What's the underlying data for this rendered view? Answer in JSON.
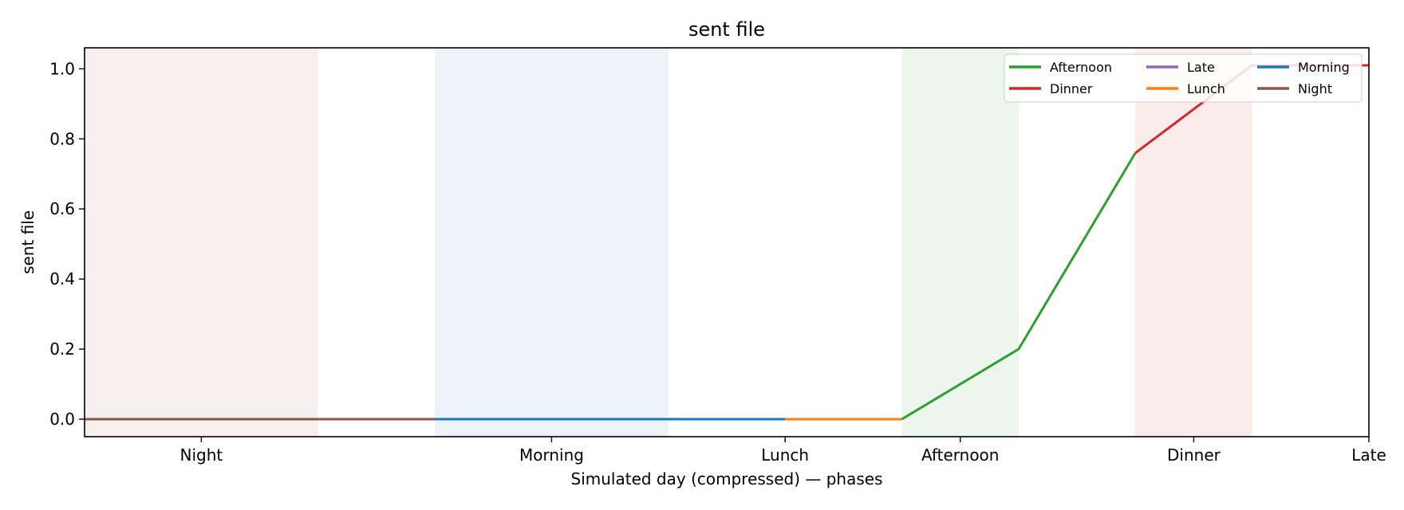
{
  "chart_data": {
    "type": "line",
    "title": "sent file",
    "xlabel": "Simulated day (compressed) — phases",
    "ylabel": "sent file",
    "xlim": [
      0,
      11
    ],
    "ylim": [
      -0.05,
      1.06
    ],
    "yticks": [
      0.0,
      0.2,
      0.4,
      0.6,
      0.8,
      1.0
    ],
    "ytick_labels": [
      "0.0",
      "0.2",
      "0.4",
      "0.6",
      "0.8",
      "1.0"
    ],
    "xticks": [
      {
        "value": 1.0,
        "label": "Night"
      },
      {
        "value": 4.0,
        "label": "Morning"
      },
      {
        "value": 6.0,
        "label": "Lunch"
      },
      {
        "value": 7.5,
        "label": "Afternoon"
      },
      {
        "value": 9.5,
        "label": "Dinner"
      },
      {
        "value": 11.0,
        "label": "Late"
      }
    ],
    "bands": [
      {
        "x0": 0,
        "x1": 2,
        "color": "#8c564b"
      },
      {
        "x0": 3,
        "x1": 5,
        "color": "#1f77b4"
      },
      {
        "x0": 7,
        "x1": 8,
        "color": "#2ca02c"
      },
      {
        "x0": 9,
        "x1": 10,
        "color": "#d62728"
      }
    ],
    "series": [
      {
        "name": "Night",
        "color": "#8c564b",
        "x": [
          0,
          1,
          2,
          3
        ],
        "y": [
          0,
          0,
          0,
          0
        ]
      },
      {
        "name": "Morning",
        "color": "#1f77b4",
        "x": [
          3,
          4,
          5,
          6
        ],
        "y": [
          0,
          0,
          0,
          0
        ]
      },
      {
        "name": "Lunch",
        "color": "#ff7f0e",
        "x": [
          6,
          7
        ],
        "y": [
          0,
          0
        ]
      },
      {
        "name": "Afternoon",
        "color": "#2ca02c",
        "x": [
          7,
          8,
          9
        ],
        "y": [
          0,
          0.2,
          0.76
        ]
      },
      {
        "name": "Dinner",
        "color": "#d62728",
        "x": [
          9,
          10,
          11
        ],
        "y": [
          0.76,
          1.01,
          1.01
        ]
      },
      {
        "name": "Late",
        "color": "#9467bd",
        "x": [
          11
        ],
        "y": [
          1.01
        ]
      }
    ],
    "grid": false,
    "legend": {
      "placement": "top-right",
      "columns": [
        [
          "Afternoon",
          "Dinner"
        ],
        [
          "Late",
          "Lunch"
        ],
        [
          "Morning",
          "Night"
        ]
      ]
    }
  }
}
